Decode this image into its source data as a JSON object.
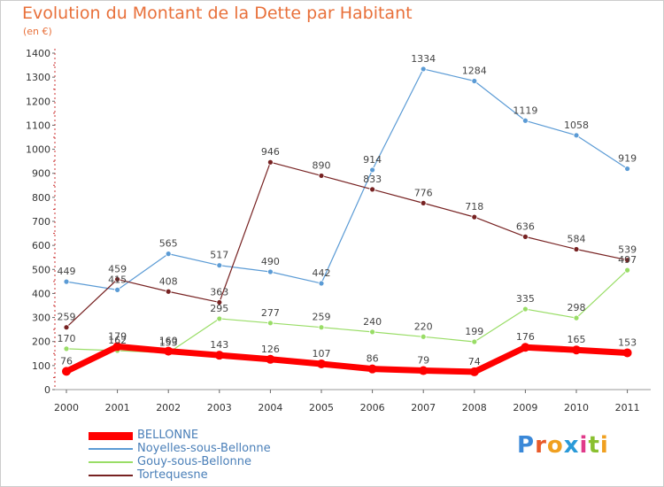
{
  "title": "Evolution du Montant de la Dette par Habitant",
  "subtitle": "(en €)",
  "logo_text": "Proxiti",
  "colors": {
    "bellonne": "#ff0000",
    "noyelles": "#5b9bd5",
    "gouy": "#99dd66",
    "tortequesne": "#772222"
  },
  "chart_data": {
    "type": "line",
    "x": [
      "2000",
      "2001",
      "2002",
      "2003",
      "2004",
      "2005",
      "2006",
      "2007",
      "2008",
      "2009",
      "2010",
      "2011"
    ],
    "ylim": [
      0,
      1400
    ],
    "yticks": [
      0,
      100,
      200,
      300,
      400,
      500,
      600,
      700,
      800,
      900,
      1000,
      1100,
      1200,
      1300,
      1400
    ],
    "grid": false,
    "legend": "bottom-left",
    "series": [
      {
        "name": "BELLONNE",
        "key": "bellonne",
        "values": [
          76,
          179,
          160,
          143,
          126,
          107,
          86,
          79,
          74,
          176,
          165,
          153
        ]
      },
      {
        "name": "Noyelles-sous-Bellonne",
        "key": "noyelles",
        "values": [
          449,
          415,
          565,
          517,
          490,
          442,
          914,
          1334,
          1284,
          1119,
          1058,
          919
        ]
      },
      {
        "name": "Gouy-sous-Bellonne",
        "key": "gouy",
        "values": [
          170,
          162,
          153,
          295,
          277,
          259,
          240,
          220,
          199,
          335,
          298,
          497
        ]
      },
      {
        "name": "Tortequesne",
        "key": "tortequesne",
        "values": [
          259,
          459,
          408,
          363,
          946,
          890,
          833,
          776,
          718,
          636,
          584,
          539
        ]
      }
    ]
  }
}
